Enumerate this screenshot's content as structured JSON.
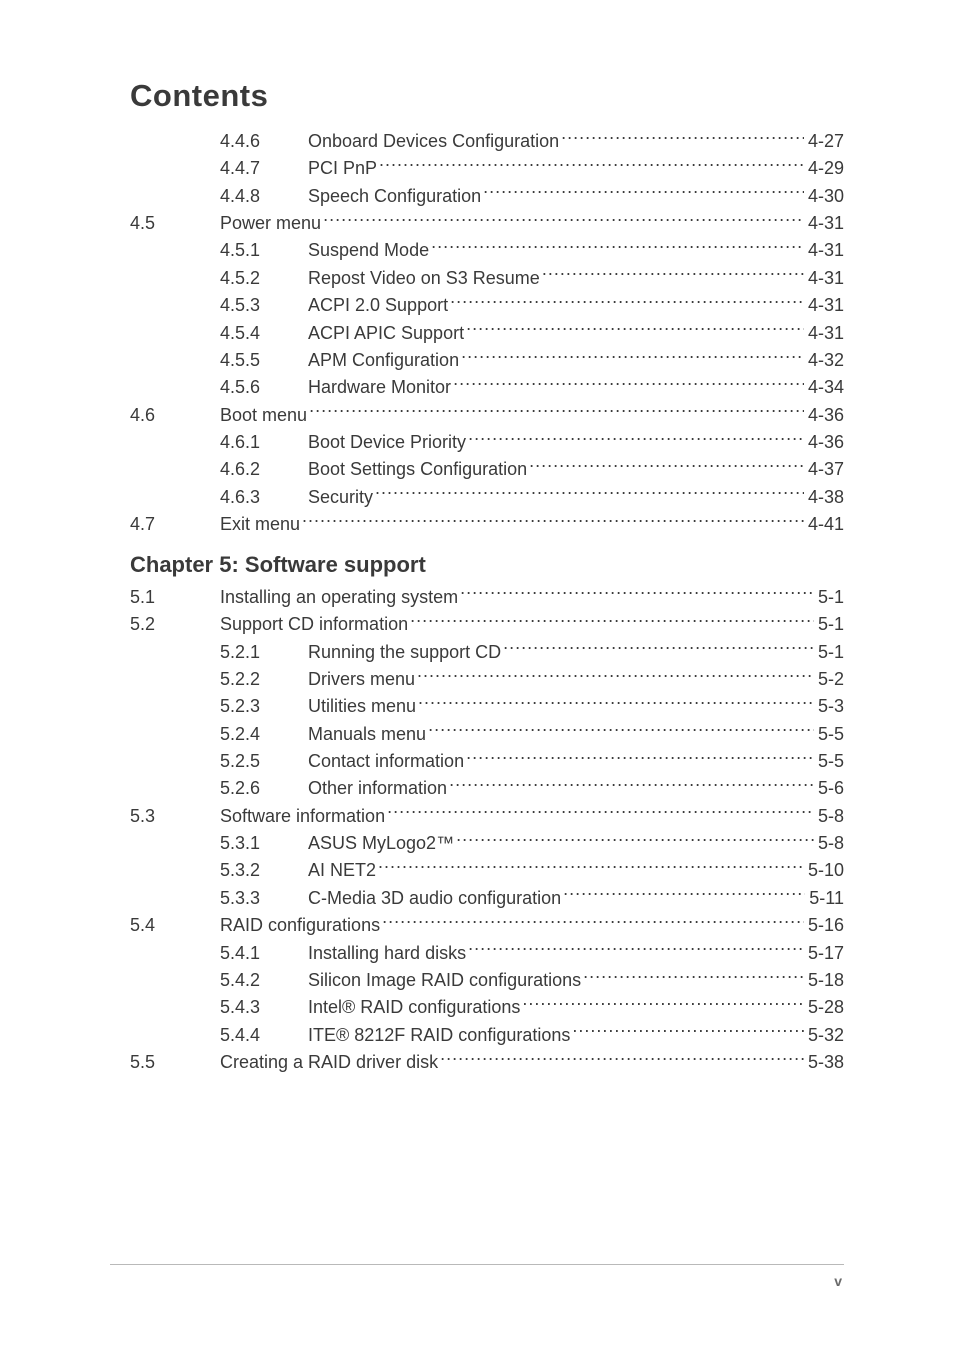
{
  "title": "Contents",
  "chapter5_heading": "Chapter 5: Software support",
  "footer_page": "v",
  "rows": [
    {
      "kind": "sub",
      "sec": "",
      "sub": "4.4.6",
      "label": "Onboard Devices Configuration",
      "page": "4-27"
    },
    {
      "kind": "sub",
      "sec": "",
      "sub": "4.4.7",
      "label": "PCI PnP",
      "page": "4-29"
    },
    {
      "kind": "sub",
      "sec": "",
      "sub": "4.4.8",
      "label": "Speech Configuration",
      "page": "4-30"
    },
    {
      "kind": "sec",
      "sec": "4.5",
      "sub": "",
      "label": "Power menu",
      "page": "4-31"
    },
    {
      "kind": "sub",
      "sec": "",
      "sub": "4.5.1",
      "label": "Suspend Mode",
      "page": "4-31"
    },
    {
      "kind": "sub",
      "sec": "",
      "sub": "4.5.2",
      "label": "Repost Video on S3 Resume",
      "page": "4-31"
    },
    {
      "kind": "sub",
      "sec": "",
      "sub": "4.5.3",
      "label": "ACPI 2.0 Support",
      "page": "4-31"
    },
    {
      "kind": "sub",
      "sec": "",
      "sub": "4.5.4",
      "label": "ACPI APIC Support",
      "page": "4-31"
    },
    {
      "kind": "sub",
      "sec": "",
      "sub": "4.5.5",
      "label": "APM Configuration",
      "page": "4-32"
    },
    {
      "kind": "sub",
      "sec": "",
      "sub": "4.5.6",
      "label": "Hardware Monitor",
      "page": "4-34"
    },
    {
      "kind": "sec",
      "sec": "4.6",
      "sub": "",
      "label": "Boot menu",
      "page": "4-36"
    },
    {
      "kind": "sub",
      "sec": "",
      "sub": "4.6.1",
      "label": "Boot Device Priority",
      "page": "4-36"
    },
    {
      "kind": "sub",
      "sec": "",
      "sub": "4.6.2",
      "label": "Boot Settings Configuration",
      "page": "4-37"
    },
    {
      "kind": "sub",
      "sec": "",
      "sub": "4.6.3",
      "label": "Security",
      "page": "4-38"
    },
    {
      "kind": "sec",
      "sec": "4.7",
      "sub": "",
      "label": "Exit menu",
      "page": "4-41"
    },
    {
      "kind": "chapter"
    },
    {
      "kind": "sec",
      "sec": "5.1",
      "sub": "",
      "label": "Installing an operating system",
      "page": "5-1"
    },
    {
      "kind": "sec",
      "sec": "5.2",
      "sub": "",
      "label": "Support CD information",
      "page": "5-1"
    },
    {
      "kind": "sub",
      "sec": "",
      "sub": "5.2.1",
      "label": "Running the support CD",
      "page": "5-1"
    },
    {
      "kind": "sub",
      "sec": "",
      "sub": "5.2.2",
      "label": "Drivers menu",
      "page": "5-2"
    },
    {
      "kind": "sub",
      "sec": "",
      "sub": "5.2.3",
      "label": "Utilities menu",
      "page": "5-3"
    },
    {
      "kind": "sub",
      "sec": "",
      "sub": "5.2.4",
      "label": "Manuals menu",
      "page": "5-5"
    },
    {
      "kind": "sub",
      "sec": "",
      "sub": "5.2.5",
      "label": "Contact information",
      "page": "5-5"
    },
    {
      "kind": "sub",
      "sec": "",
      "sub": "5.2.6",
      "label": "Other information",
      "page": "5-6"
    },
    {
      "kind": "sec",
      "sec": "5.3",
      "sub": "",
      "label": "Software information",
      "page": "5-8"
    },
    {
      "kind": "sub",
      "sec": "",
      "sub": "5.3.1",
      "label": "ASUS MyLogo2™",
      "page": "5-8"
    },
    {
      "kind": "sub",
      "sec": "",
      "sub": "5.3.2",
      "label": "AI NET2",
      "page": "5-10"
    },
    {
      "kind": "sub",
      "sec": "",
      "sub": "5.3.3",
      "label": "C-Media 3D audio configuration",
      "page": "5-11"
    },
    {
      "kind": "sec",
      "sec": "5.4",
      "sub": "",
      "label": "RAID configurations",
      "page": "5-16"
    },
    {
      "kind": "sub",
      "sec": "",
      "sub": "5.4.1",
      "label": "Installing hard disks",
      "page": "5-17"
    },
    {
      "kind": "sub",
      "sec": "",
      "sub": "5.4.2",
      "label": "Silicon Image RAID configurations",
      "page": "5-18"
    },
    {
      "kind": "sub",
      "sec": "",
      "sub": "5.4.3",
      "label": "Intel® RAID configurations",
      "page": "5-28"
    },
    {
      "kind": "sub",
      "sec": "",
      "sub": "5.4.4",
      "label": "ITE® 8212F RAID configurations",
      "page": "5-32"
    },
    {
      "kind": "sec",
      "sec": "5.5",
      "sub": "",
      "label": "Creating a RAID driver disk",
      "page": "5-38"
    }
  ]
}
